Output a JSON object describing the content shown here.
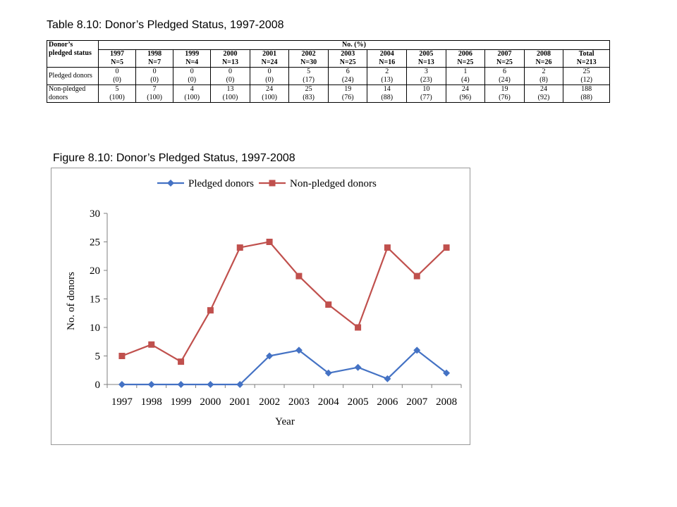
{
  "table": {
    "title": "Table 8.10: Donor’s Pledged Status, 1997-2008",
    "corner_header": "Donor’s pledged status",
    "group_header": "No. (%)",
    "columns": [
      {
        "year": "1997",
        "n": "N=5"
      },
      {
        "year": "1998",
        "n": "N=7"
      },
      {
        "year": "1999",
        "n": "N=4"
      },
      {
        "year": "2000",
        "n": "N=13"
      },
      {
        "year": "2001",
        "n": "N=24"
      },
      {
        "year": "2002",
        "n": "N=30"
      },
      {
        "year": "2003",
        "n": "N=25"
      },
      {
        "year": "2004",
        "n": "N=16"
      },
      {
        "year": "2005",
        "n": "N=13"
      },
      {
        "year": "2006",
        "n": "N=25"
      },
      {
        "year": "2007",
        "n": "N=25"
      },
      {
        "year": "2008",
        "n": "N=26"
      },
      {
        "year": "Total",
        "n": "N=213"
      }
    ],
    "rows": [
      {
        "label": "Pledged donors",
        "cells": [
          [
            "0",
            "(0)"
          ],
          [
            "0",
            "(0)"
          ],
          [
            "0",
            "(0)"
          ],
          [
            "0",
            "(0)"
          ],
          [
            "0",
            "(0)"
          ],
          [
            "5",
            "(17)"
          ],
          [
            "6",
            "(24)"
          ],
          [
            "2",
            "(13)"
          ],
          [
            "3",
            "(23)"
          ],
          [
            "1",
            "(4)"
          ],
          [
            "6",
            "(24)"
          ],
          [
            "2",
            "(8)"
          ],
          [
            "25",
            "(12)"
          ]
        ]
      },
      {
        "label": "Non-pledged donors",
        "cells": [
          [
            "5",
            "(100)"
          ],
          [
            "7",
            "(100)"
          ],
          [
            "4",
            "(100)"
          ],
          [
            "13",
            "(100)"
          ],
          [
            "24",
            "(100)"
          ],
          [
            "25",
            "(83)"
          ],
          [
            "19",
            "(76)"
          ],
          [
            "14",
            "(88)"
          ],
          [
            "10",
            "(77)"
          ],
          [
            "24",
            "(96)"
          ],
          [
            "19",
            "(76)"
          ],
          [
            "24",
            "(92)"
          ],
          [
            "188",
            "(88)"
          ]
        ]
      }
    ]
  },
  "figure": {
    "title": "Figure 8.10: Donor’s Pledged Status, 1997-2008"
  },
  "chart_data": {
    "type": "line",
    "title": "",
    "xlabel": "Year",
    "ylabel": "No. of donors",
    "x": [
      "1997",
      "1998",
      "1999",
      "2000",
      "2001",
      "2002",
      "2003",
      "2004",
      "2005",
      "2006",
      "2007",
      "2008"
    ],
    "ylim": [
      0,
      30
    ],
    "yticks": [
      0,
      5,
      10,
      15,
      20,
      25,
      30
    ],
    "grid": false,
    "legend_position": "top",
    "series": [
      {
        "name": "Pledged donors",
        "color": "#4472C4",
        "marker": "diamond",
        "values": [
          0,
          0,
          0,
          0,
          0,
          5,
          6,
          2,
          3,
          1,
          6,
          2
        ]
      },
      {
        "name": "Non-pledged donors",
        "color": "#C0504D",
        "marker": "square",
        "values": [
          5,
          7,
          4,
          13,
          24,
          25,
          19,
          14,
          10,
          24,
          19,
          24
        ]
      }
    ]
  }
}
